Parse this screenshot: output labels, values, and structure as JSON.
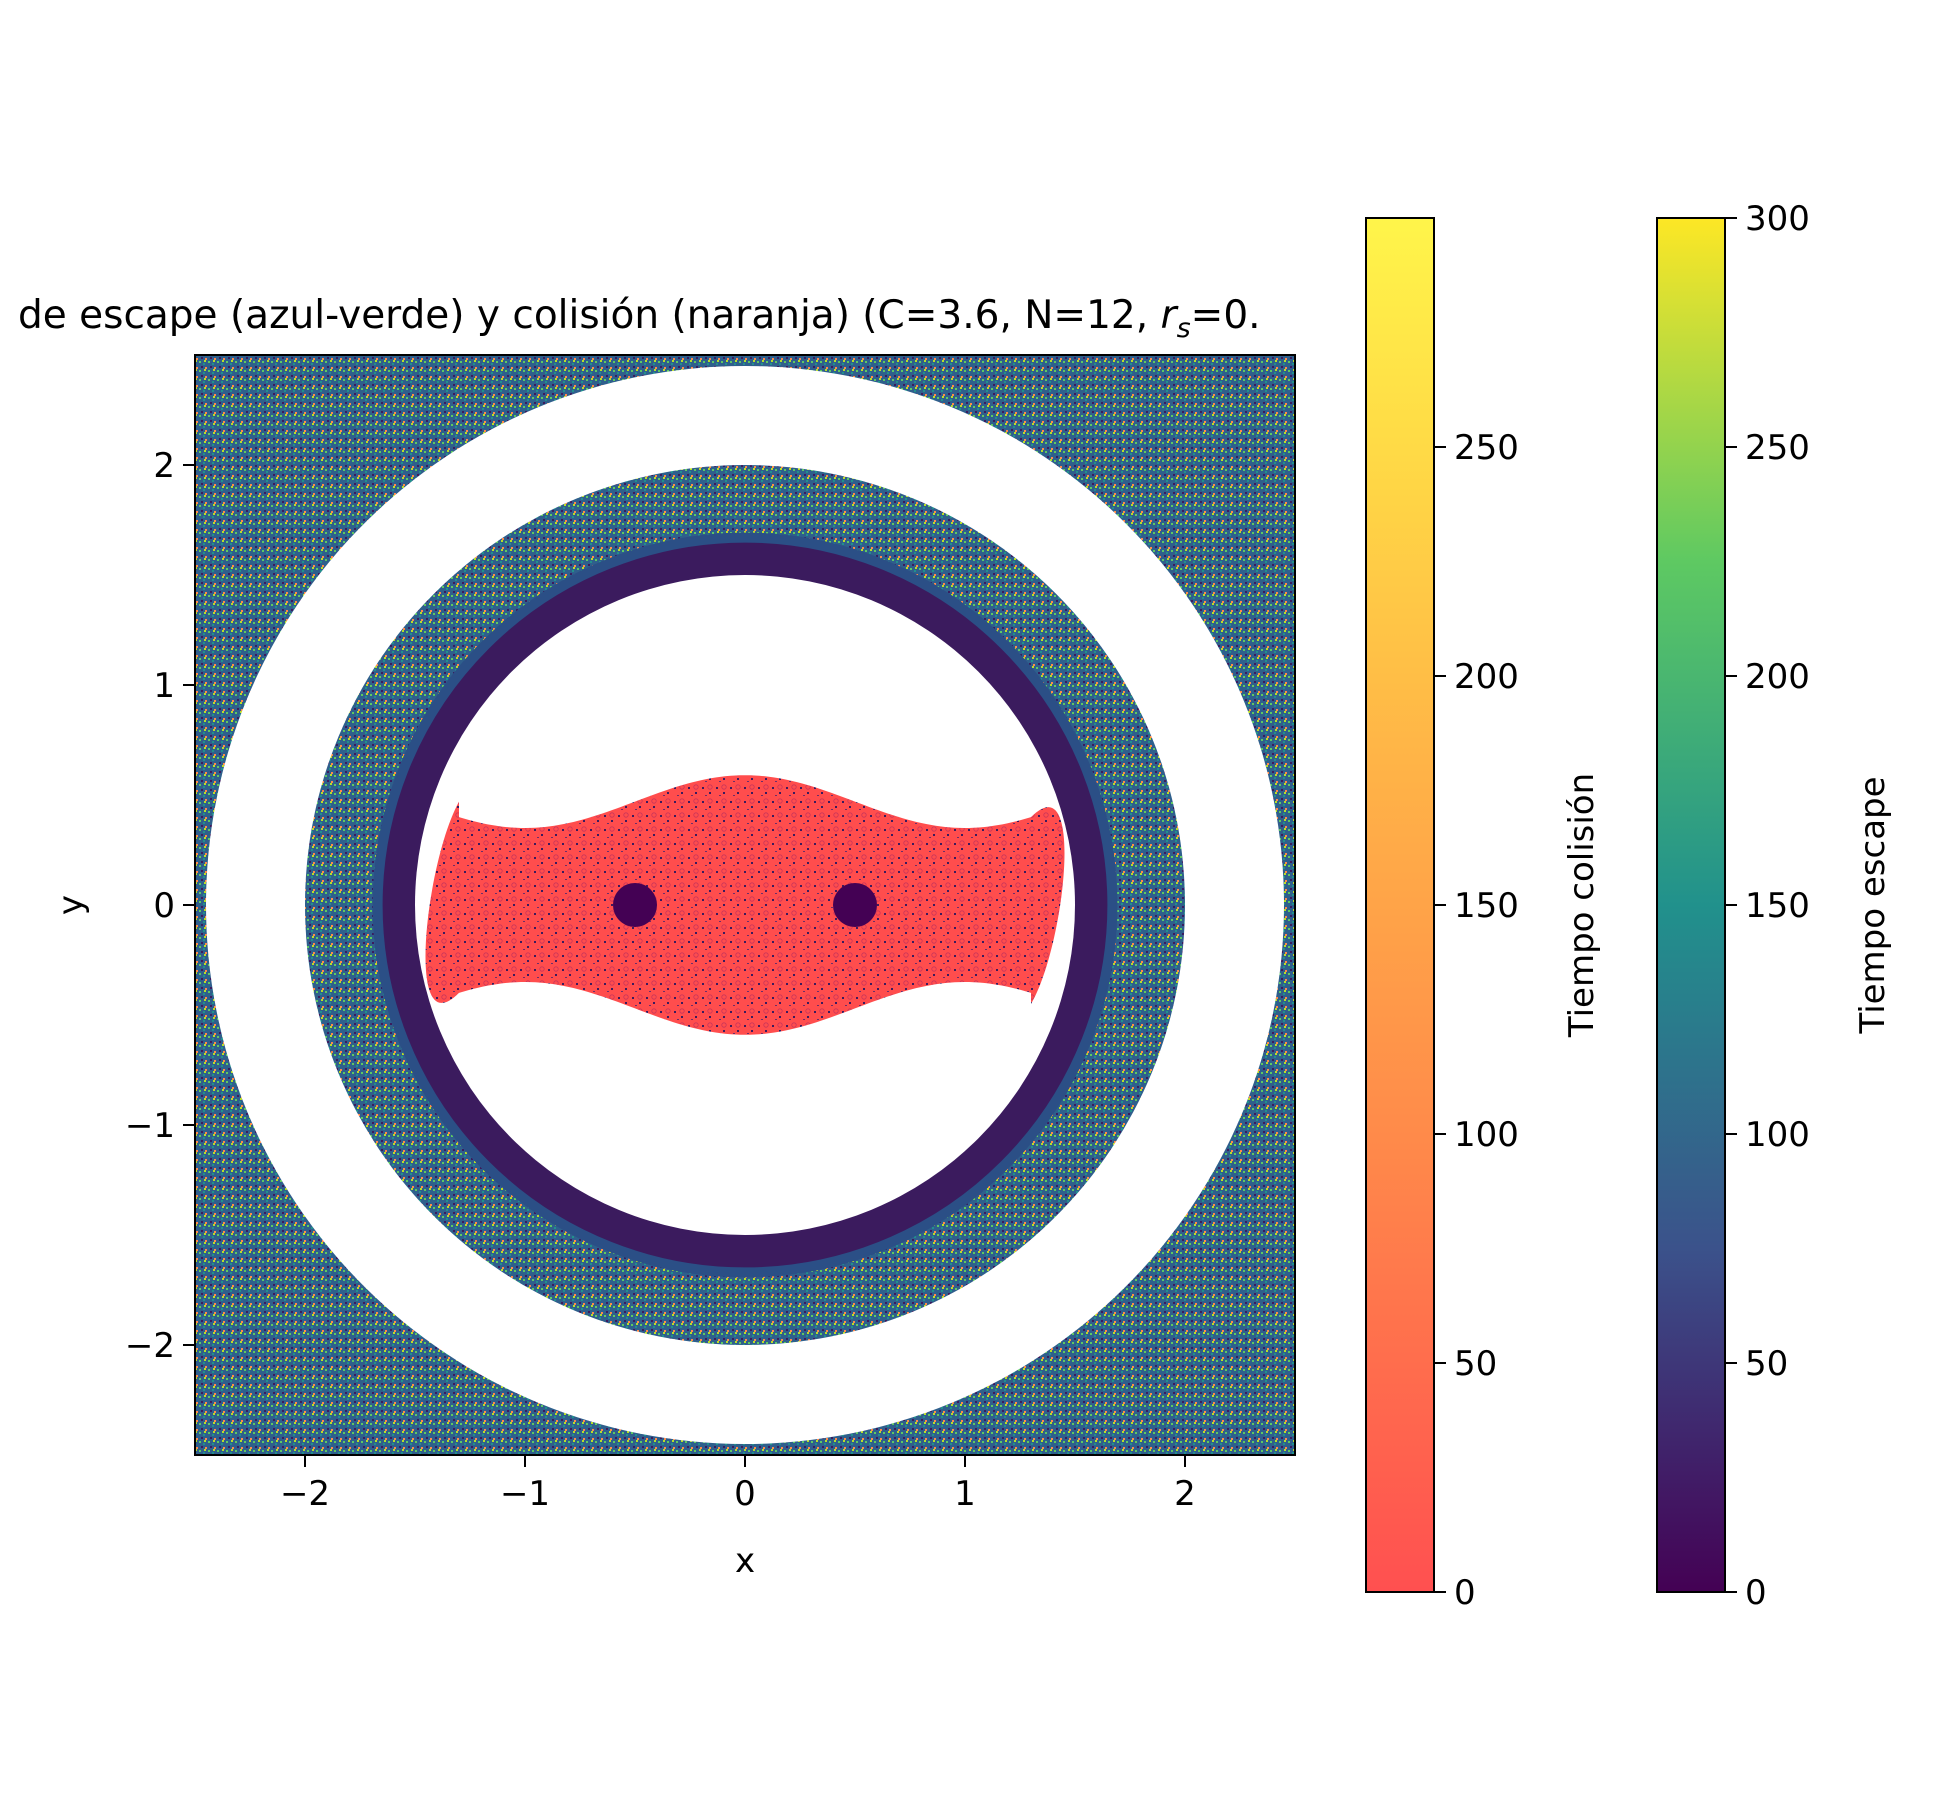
{
  "chart_data": {
    "type": "heatmap",
    "title": "de escape (azul-verde) y colisión (naranja) (C=3.6, N=",
    "title_tail": "12, ",
    "title_rs_base": "r",
    "title_rs_sub": "s",
    "title_rs_rest": "=0.",
    "xlabel": "x",
    "ylabel": "y",
    "xlim": [
      -2.5,
      2.5
    ],
    "ylim": [
      -2.5,
      2.5
    ],
    "x_ticks": [
      -2,
      -1,
      0,
      1,
      2
    ],
    "y_ticks": [
      -2,
      -1,
      0,
      1,
      2
    ],
    "x_tick_labels": [
      "−2",
      "−1",
      "0",
      "1",
      "2"
    ],
    "y_tick_labels": [
      "−2",
      "−1",
      "0",
      "1",
      "2"
    ],
    "grid": false,
    "primaries": [
      {
        "x": -0.5,
        "y": 0.0,
        "radius": 0.1
      },
      {
        "x": 0.5,
        "y": 0.0,
        "radius": 0.1
      }
    ],
    "regions": {
      "collision_lobe": "x in [-1.45, 1.45], |y| <= 0.6",
      "forbidden_inner": {
        "radius": 1.5
      },
      "bounded_ring": {
        "inner_radius": 1.5,
        "outer_radius": 1.75
      },
      "chaotic_band": {
        "inner_radius": 1.75,
        "outer_radius": 2.0
      },
      "forbidden_outer": {
        "inner_radius": 2.0,
        "outer_radius": 2.45
      }
    },
    "colorbars": [
      {
        "label": "Tiempo colisión",
        "colormap": "autumn_r",
        "range": [
          0,
          300
        ],
        "ticks": [
          0,
          50,
          100,
          150,
          200,
          250
        ],
        "tick_labels": [
          "0",
          "50",
          "100",
          "150",
          "200",
          "250"
        ],
        "colors": [
          "#ff5050",
          "#ff8a4a",
          "#ffb347",
          "#ffd545",
          "#fff54a"
        ]
      },
      {
        "label": "Tiempo escape",
        "colormap": "viridis",
        "range": [
          0,
          300
        ],
        "ticks": [
          0,
          50,
          100,
          150,
          200,
          250,
          300
        ],
        "tick_labels": [
          "0",
          "50",
          "100",
          "150",
          "200",
          "250",
          "300"
        ],
        "colors": [
          "#440154",
          "#3b528b",
          "#21918c",
          "#5ec962",
          "#fde725"
        ]
      }
    ],
    "palette": {
      "escape_dark": "#3b1b5e",
      "escape_band": "#2f5f8c",
      "collision": "#ff4d4d",
      "forbidden": "#ffffff"
    }
  }
}
